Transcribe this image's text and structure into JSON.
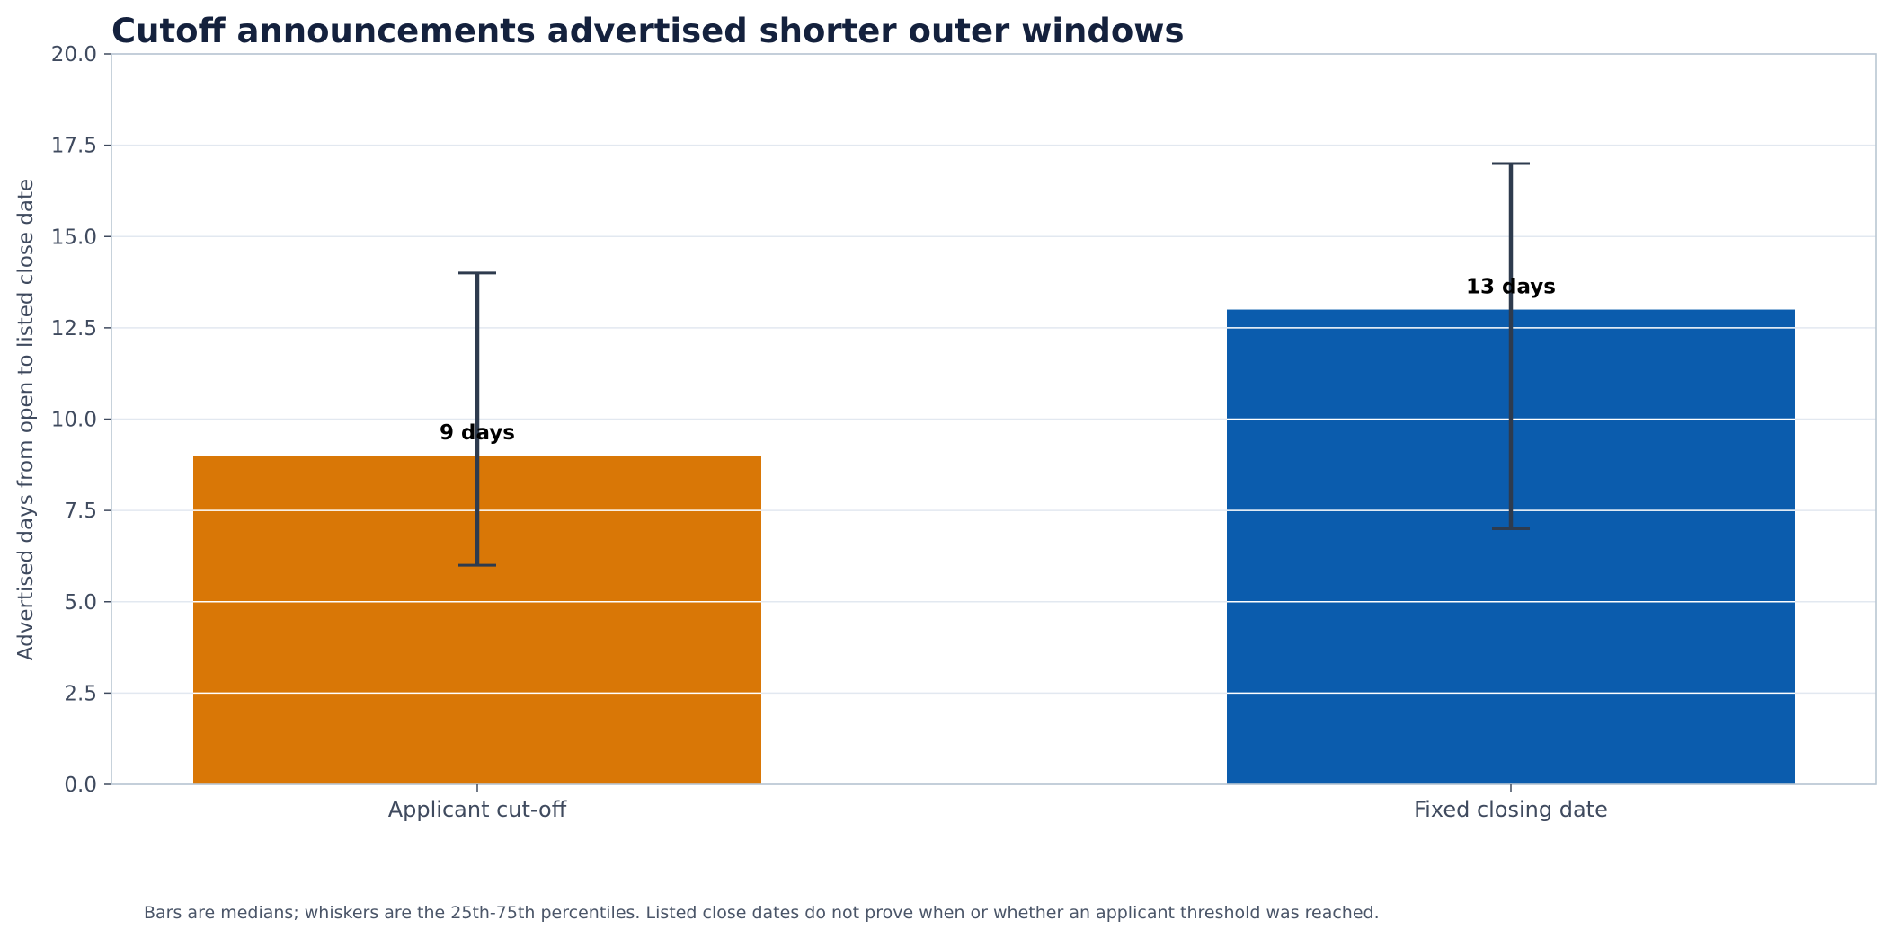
{
  "chart_data": {
    "type": "bar",
    "title": "Cutoff announcements advertised shorter outer windows",
    "xlabel": "",
    "ylabel": "Advertised days from open to listed close date",
    "ylim": [
      0,
      20
    ],
    "yticks": [
      0.0,
      2.5,
      5.0,
      7.5,
      10.0,
      12.5,
      15.0,
      17.5,
      20.0
    ],
    "ytick_labels": [
      "0.0",
      "2.5",
      "5.0",
      "7.5",
      "10.0",
      "12.5",
      "15.0",
      "17.5",
      "20.0"
    ],
    "grid": true,
    "categories": [
      "Applicant cut-off",
      "Fixed closing date"
    ],
    "values": [
      9,
      13
    ],
    "error_low": [
      6,
      7
    ],
    "error_high": [
      14,
      17
    ],
    "data_labels": [
      "9 days",
      "13 days"
    ],
    "colors": [
      "#d97706",
      "#0b5cad"
    ],
    "error_color": "#2e3b4e",
    "grid_color": "#e2e8f0",
    "frame_color": "#b9c6d2",
    "footnote": "Bars are medians; whiskers are the 25th-75th percentiles. Listed close dates do not prove when or whether an applicant threshold was reached."
  }
}
